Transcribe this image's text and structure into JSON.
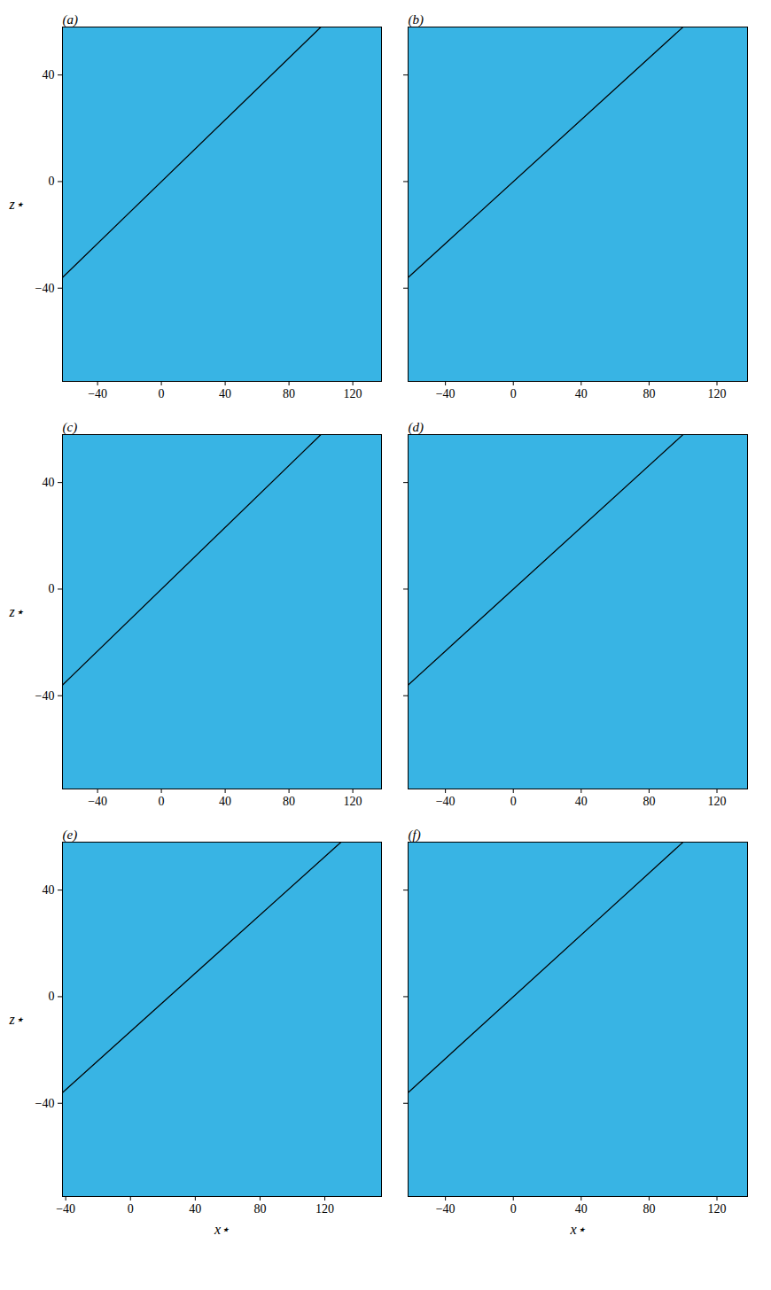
{
  "chart_data": [
    {
      "type": "line",
      "title": "(a)",
      "y_label": "z⋆",
      "xlim": [
        -62,
        138
      ],
      "ylim": [
        -75,
        58
      ],
      "xticks": [
        -40,
        0,
        40,
        80,
        120
      ],
      "yticks": [
        -40,
        0,
        40
      ],
      "series": [
        {
          "color": "#000000",
          "x": [
            -62,
            100
          ],
          "values": [
            -36,
            58
          ]
        }
      ]
    },
    {
      "type": "line",
      "title": "(b)",
      "tick_labels": "x",
      "xlim": [
        -62,
        138
      ],
      "ylim": [
        -75,
        58
      ],
      "xticks": [
        -40,
        0,
        40,
        80,
        120
      ],
      "yticks": [
        -40,
        0,
        40
      ],
      "series": [
        {
          "color": "#000000",
          "x": [
            -62,
            100
          ],
          "values": [
            -36,
            58
          ]
        }
      ]
    },
    {
      "type": "line",
      "title": "(c)",
      "y_label": "z⋆",
      "xlim": [
        -62,
        138
      ],
      "ylim": [
        -75,
        58
      ],
      "xticks": [
        -40,
        0,
        40,
        80,
        120
      ],
      "yticks": [
        -40,
        0,
        40
      ],
      "series": [
        {
          "color": "#000000",
          "x": [
            -62,
            100
          ],
          "values": [
            -36,
            58
          ]
        }
      ]
    },
    {
      "type": "line",
      "title": "(d)",
      "tick_labels": "x",
      "xlim": [
        -62,
        138
      ],
      "ylim": [
        -75,
        58
      ],
      "xticks": [
        -40,
        0,
        40,
        80,
        120
      ],
      "yticks": [
        -40,
        0,
        40
      ],
      "series": [
        {
          "color": "#000000",
          "x": [
            -62,
            100
          ],
          "values": [
            -36,
            58
          ]
        }
      ]
    },
    {
      "type": "line",
      "title": "(e)",
      "x_label": "x⋆",
      "y_label": "z⋆",
      "xlim": [
        -42,
        155
      ],
      "ylim": [
        -75,
        58
      ],
      "xticks": [
        -40,
        0,
        40,
        80,
        120
      ],
      "yticks": [
        -40,
        0,
        40
      ],
      "series": [
        {
          "color": "#000000",
          "x": [
            -42,
            130
          ],
          "values": [
            -36,
            58
          ]
        }
      ]
    },
    {
      "type": "line",
      "title": "(f)",
      "x_label": "x⋆",
      "tick_labels": "x",
      "xlim": [
        -62,
        138
      ],
      "ylim": [
        -75,
        58
      ],
      "xticks": [
        -40,
        0,
        40,
        80,
        120
      ],
      "yticks": [
        -40,
        0,
        40
      ],
      "series": [
        {
          "color": "#000000",
          "x": [
            -62,
            100
          ],
          "values": [
            -36,
            58
          ]
        }
      ]
    }
  ]
}
